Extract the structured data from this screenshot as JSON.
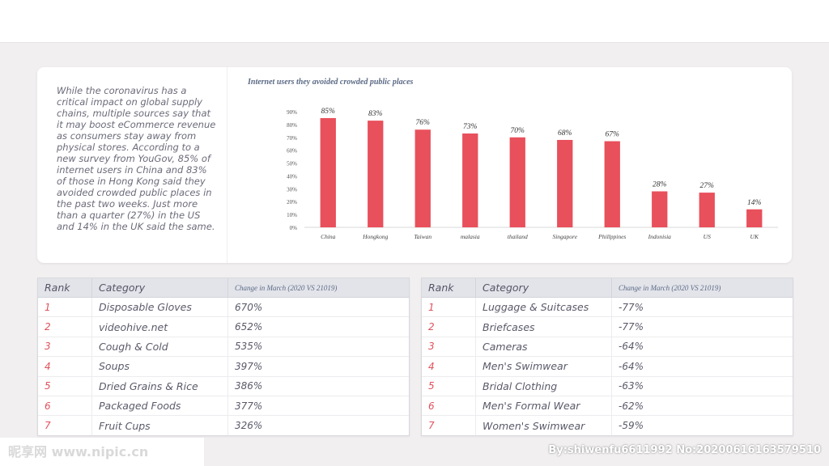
{
  "intro_text": "While the coronavirus has a critical impact on global supply chains, multiple sources say that it may boost eCommerce revenue as consumers stay away from physical stores.  According to a new survey from YouGov, 85% of internet users in China and 83% of those in Hong Kong said they avoided crowded public places in the past two weeks. Just more than a quarter (27%) in the US and 14% in the UK said the same.",
  "chart_data": {
    "type": "bar",
    "title": "Internet users they avoided crowded public places",
    "categories": [
      "China",
      "Hongkong",
      "Taiwan",
      "malasia",
      "thailand",
      "Singapore",
      "Phillppines",
      "Indonisia",
      "US",
      "UK"
    ],
    "values": [
      85,
      83,
      76,
      73,
      70,
      68,
      67,
      28,
      27,
      14
    ],
    "value_labels": [
      "85%",
      "83%",
      "76%",
      "73%",
      "70%",
      "68%",
      "67%",
      "28%",
      "27%",
      "14%"
    ],
    "y_ticks": [
      "0%",
      "10%",
      "20%",
      "30%",
      "40%",
      "50%",
      "60%",
      "70%",
      "80%",
      "90%"
    ],
    "ylim": [
      0,
      90
    ],
    "grid": false,
    "bar_color": "#e8505b",
    "xlabel": "",
    "ylabel": ""
  },
  "table_left": {
    "headers": [
      "Rank",
      "Category",
      "Change in March (2020 VS 21019)"
    ],
    "rows": [
      {
        "rank": "1",
        "category": "Disposable Gloves",
        "change": "670%"
      },
      {
        "rank": "2",
        "category": "videohive.net",
        "change": "652%"
      },
      {
        "rank": "3",
        "category": "Cough & Cold",
        "change": "535%"
      },
      {
        "rank": "4",
        "category": "Soups",
        "change": "397%"
      },
      {
        "rank": "5",
        "category": "Dried Grains & Rice",
        "change": "386%"
      },
      {
        "rank": "6",
        "category": "Packaged Foods",
        "change": "377%"
      },
      {
        "rank": "7",
        "category": "Fruit Cups",
        "change": "326%"
      }
    ]
  },
  "table_right": {
    "headers": [
      "Rank",
      "Category",
      "Change in March (2020 VS 21019)"
    ],
    "rows": [
      {
        "rank": "1",
        "category": "Luggage & Suitcases",
        "change": "-77%"
      },
      {
        "rank": "2",
        "category": "Briefcases",
        "change": "-77%"
      },
      {
        "rank": "3",
        "category": "Cameras",
        "change": "-64%"
      },
      {
        "rank": "4",
        "category": "Men's Swimwear",
        "change": "-64%"
      },
      {
        "rank": "5",
        "category": "Bridal Clothing",
        "change": "-63%"
      },
      {
        "rank": "6",
        "category": "Men's Formal Wear",
        "change": "-62%"
      },
      {
        "rank": "7",
        "category": "Women's Swimwear",
        "change": "-59%"
      }
    ]
  },
  "watermark": {
    "left": "昵享网 www.nipic.cn",
    "right": "By:shiwenfu6611992 No:20200616163579510"
  },
  "colors": {
    "accent": "#e8505b",
    "rank_color": "#e0515c",
    "header_bg": "#e3e4ea"
  }
}
